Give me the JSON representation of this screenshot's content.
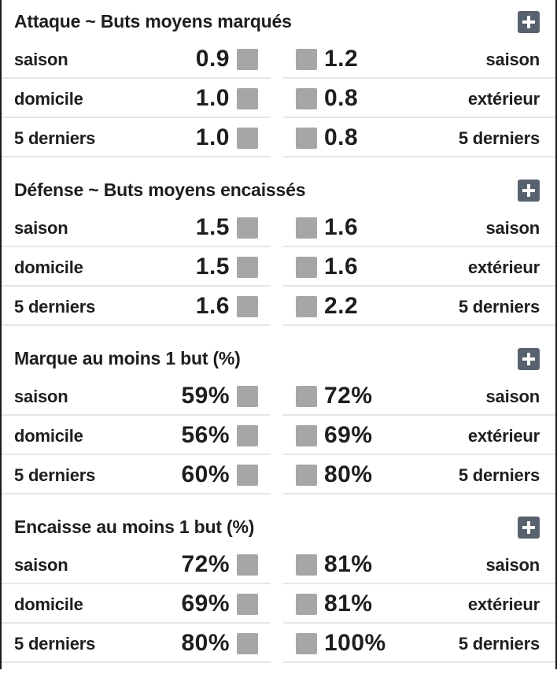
{
  "sections": [
    {
      "title": "Attaque ~ Buts moyens marqués",
      "rows": [
        {
          "left_label": "saison",
          "left_value": "0.9",
          "right_value": "1.2",
          "right_label": "saison"
        },
        {
          "left_label": "domicile",
          "left_value": "1.0",
          "right_value": "0.8",
          "right_label": "extérieur"
        },
        {
          "left_label": "5 derniers",
          "left_value": "1.0",
          "right_value": "0.8",
          "right_label": "5 derniers"
        }
      ]
    },
    {
      "title": "Défense ~ Buts moyens encaissés",
      "rows": [
        {
          "left_label": "saison",
          "left_value": "1.5",
          "right_value": "1.6",
          "right_label": "saison"
        },
        {
          "left_label": "domicile",
          "left_value": "1.5",
          "right_value": "1.6",
          "right_label": "extérieur"
        },
        {
          "left_label": "5 derniers",
          "left_value": "1.6",
          "right_value": "2.2",
          "right_label": "5 derniers"
        }
      ]
    },
    {
      "title": "Marque au moins 1 but (%)",
      "rows": [
        {
          "left_label": "saison",
          "left_value": "59%",
          "right_value": "72%",
          "right_label": "saison"
        },
        {
          "left_label": "domicile",
          "left_value": "56%",
          "right_value": "69%",
          "right_label": "extérieur"
        },
        {
          "left_label": "5 derniers",
          "left_value": "60%",
          "right_value": "80%",
          "right_label": "5 derniers"
        }
      ]
    },
    {
      "title": "Encaisse au moins 1 but (%)",
      "rows": [
        {
          "left_label": "saison",
          "left_value": "72%",
          "right_value": "81%",
          "right_label": "saison"
        },
        {
          "left_label": "domicile",
          "left_value": "69%",
          "right_value": "81%",
          "right_label": "extérieur"
        },
        {
          "left_label": "5 derniers",
          "left_value": "80%",
          "right_value": "100%",
          "right_label": "5 derniers"
        }
      ]
    }
  ],
  "colors": {
    "expand_button": "#58626e",
    "square_marker": "#a6a6a6",
    "divider": "#e6e6e6"
  },
  "icons": {
    "expand": "plus-icon",
    "marker": "square-marker"
  }
}
